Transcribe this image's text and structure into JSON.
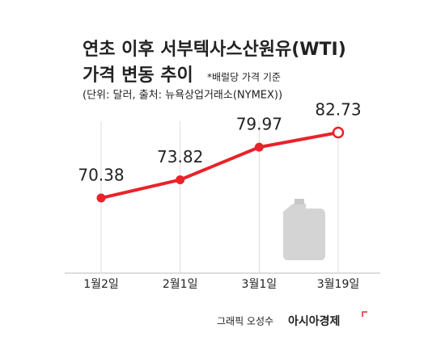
{
  "chart_data": {
    "type": "line",
    "title": "연초 이후 서부텍사스산원유(WTI)",
    "subtitle": "가격 변동 추이",
    "note": "*배럴당 가격 기준",
    "unit_note": "(단위: 달러, 출처: 뉴욕상업거래소(NYMEX))",
    "categories": [
      "1월2일",
      "2월1일",
      "3월1일",
      "3월19일"
    ],
    "values": [
      70.38,
      73.82,
      79.97,
      82.73
    ],
    "color": "#e8232a",
    "credit": "그래픽 오성수",
    "brand": "아시아경제"
  }
}
